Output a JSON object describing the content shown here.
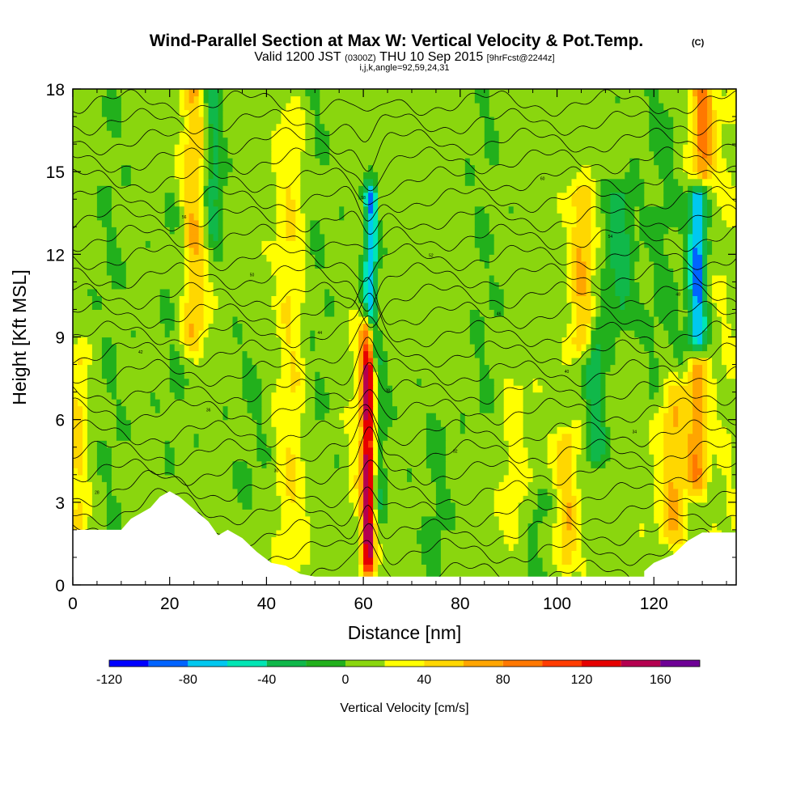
{
  "chart_data": {
    "type": "heatmap",
    "title": "Wind-Parallel Section at Max W: Vertical Velocity & Pot.Temp.",
    "title_mark": "(C)",
    "subtitle": {
      "valid": "Valid 1200 JST",
      "zulu": "(0300Z)",
      "date": "THU 10 Sep 2015",
      "fcst": "[9hrFcst@2244z]"
    },
    "indices": "i,j,k,angle=92,59,24,31",
    "xlabel": "Distance [nm]",
    "ylabel": "Height [Kft MSL]",
    "xlim": [
      0,
      137
    ],
    "ylim": [
      0,
      18
    ],
    "x_ticks": [
      "0",
      "20",
      "40",
      "60",
      "80",
      "100",
      "120"
    ],
    "y_ticks": [
      "0",
      "3",
      "6",
      "9",
      "12",
      "15",
      "18"
    ],
    "colorbar": {
      "label": "Vertical Velocity [cm/s]",
      "min": -120,
      "max": 180,
      "step": 20,
      "tick_labels": [
        "-120",
        "-80",
        "-40",
        "0",
        "40",
        "80",
        "120",
        "160"
      ],
      "colors": [
        "#0000ff",
        "#0064ff",
        "#00c8f0",
        "#00e6b4",
        "#10b84a",
        "#22b01c",
        "#8ad60e",
        "#ffff00",
        "#ffd700",
        "#ffa500",
        "#ff7800",
        "#ff3c00",
        "#e60000",
        "#b40050",
        "#6e0096"
      ]
    },
    "grid": false,
    "field": {
      "background_w": 10,
      "features": [
        {
          "x": 61,
          "y0": 1,
          "y1": 9,
          "w": 150,
          "width": 1.3
        },
        {
          "x": 61.5,
          "y0": 9,
          "y1": 14,
          "w": -90,
          "width": 1.3
        },
        {
          "x": 63,
          "y0": 3,
          "y1": 8,
          "w": -30,
          "width": 2
        },
        {
          "x": 59,
          "y0": 3,
          "y1": 9,
          "w": 20,
          "width": 2
        },
        {
          "x": 25,
          "y0": 9,
          "y1": 18,
          "w": 50,
          "width": 2.5
        },
        {
          "x": 29,
          "y0": 13,
          "y1": 18,
          "w": -40,
          "width": 2
        },
        {
          "x": 21,
          "y0": 5,
          "y1": 14,
          "w": -10,
          "width": 3
        },
        {
          "x": 1,
          "y0": 2,
          "y1": 8,
          "w": 35,
          "width": 2
        },
        {
          "x": 8,
          "y0": 0,
          "y1": 18,
          "w": -10,
          "width": 3
        },
        {
          "x": 45,
          "y0": 1,
          "y1": 17,
          "w": 30,
          "width": 3
        },
        {
          "x": 50,
          "y0": 5,
          "y1": 18,
          "w": -10,
          "width": 3
        },
        {
          "x": 37,
          "y0": 3,
          "y1": 9,
          "w": -10,
          "width": 4
        },
        {
          "x": 75,
          "y0": 0,
          "y1": 6,
          "w": -15,
          "width": 3
        },
        {
          "x": 85,
          "y0": 6,
          "y1": 18,
          "w": -10,
          "width": 3
        },
        {
          "x": 91,
          "y0": 2,
          "y1": 7,
          "w": 20,
          "width": 3
        },
        {
          "x": 96,
          "y0": 0,
          "y1": 3,
          "w": -15,
          "width": 3
        },
        {
          "x": 105,
          "y0": 9,
          "y1": 14,
          "w": 50,
          "width": 2.5
        },
        {
          "x": 102,
          "y0": 1,
          "y1": 5,
          "w": 45,
          "width": 2.5
        },
        {
          "x": 108,
          "y0": 5,
          "y1": 9,
          "w": -45,
          "width": 2
        },
        {
          "x": 113,
          "y0": 10,
          "y1": 14,
          "w": -40,
          "width": 3
        },
        {
          "x": 122,
          "y0": 7,
          "y1": 18,
          "w": -15,
          "width": 4
        },
        {
          "x": 124,
          "y0": 2,
          "y1": 7,
          "w": 50,
          "width": 3
        },
        {
          "x": 129,
          "y0": 4,
          "y1": 8,
          "w": 65,
          "width": 2
        },
        {
          "x": 129,
          "y0": 9,
          "y1": 14,
          "w": -95,
          "width": 1.8
        },
        {
          "x": 130,
          "y0": 15,
          "y1": 18,
          "w": 75,
          "width": 2.5
        },
        {
          "x": 135,
          "y0": 0,
          "y1": 18,
          "w": 10,
          "width": 3
        }
      ]
    },
    "terrain": [
      [
        0,
        2
      ],
      [
        10,
        2
      ],
      [
        12,
        2.4
      ],
      [
        14,
        2.6
      ],
      [
        16,
        2.8
      ],
      [
        18,
        3.2
      ],
      [
        20,
        3.4
      ],
      [
        22,
        3.2
      ],
      [
        24,
        2.9
      ],
      [
        26,
        2.6
      ],
      [
        28,
        2.3
      ],
      [
        30,
        1.8
      ],
      [
        32,
        2
      ],
      [
        35,
        1.7
      ],
      [
        38,
        1.2
      ],
      [
        41,
        0.8
      ],
      [
        44,
        0.7
      ],
      [
        47,
        0.4
      ],
      [
        50,
        0.3
      ],
      [
        137,
        0.3
      ]
    ],
    "terrain_right": [
      [
        118,
        0.5
      ],
      [
        120,
        0.8
      ],
      [
        124,
        1.1
      ],
      [
        127,
        1.6
      ],
      [
        130,
        1.9
      ],
      [
        137,
        1.9
      ]
    ],
    "theta": {
      "base_heights": [
        0.4,
        1.2,
        1.9,
        2.6,
        3.3,
        4.1,
        4.8,
        5.5,
        6.3,
        7.0,
        7.7,
        8.4,
        9.1,
        9.8,
        10.5,
        11.2,
        11.9,
        12.6,
        13.3,
        14.0,
        14.7,
        15.4,
        16.1,
        16.8,
        17.5
      ],
      "perturb_x": 61,
      "label_values": [
        "28",
        "30",
        "32",
        "34",
        "36",
        "38",
        "40",
        "42",
        "44",
        "46",
        "48",
        "50",
        "52",
        "54",
        "56",
        "58",
        "60"
      ]
    }
  }
}
